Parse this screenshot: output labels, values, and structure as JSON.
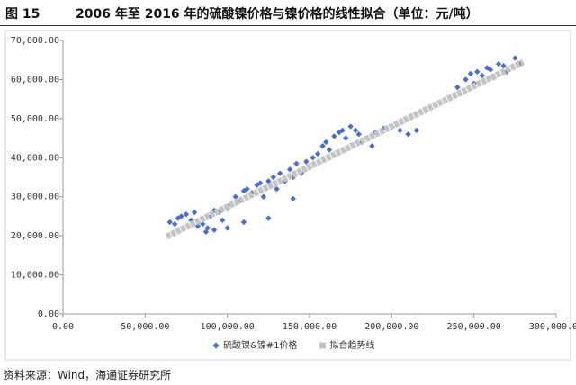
{
  "figure_label": "图 15",
  "source": "资料来源：Wind，海通证券研究所",
  "chart_data": {
    "type": "scatter",
    "title": "2006 年至 2016 年的硫酸镍价格与镍价格的线性拟合（单位：元/吨）",
    "xlim": [
      0,
      300000
    ],
    "ylim": [
      0,
      70000
    ],
    "grid": false,
    "xticks": [
      {
        "value": 0,
        "label": "0.00"
      },
      {
        "value": 50000,
        "label": "50,000.00"
      },
      {
        "value": 100000,
        "label": "100,000.00"
      },
      {
        "value": 150000,
        "label": "150,000.00"
      },
      {
        "value": 200000,
        "label": "200,000.00"
      },
      {
        "value": 250000,
        "label": "250,000.00"
      },
      {
        "value": 300000,
        "label": "300,000.00"
      }
    ],
    "yticks": [
      {
        "value": 0,
        "label": "0.00"
      },
      {
        "value": 10000,
        "label": "10,000.00"
      },
      {
        "value": 20000,
        "label": "20,000.00"
      },
      {
        "value": 30000,
        "label": "30,000.00"
      },
      {
        "value": 40000,
        "label": "40,000.00"
      },
      {
        "value": 50000,
        "label": "50,000.00"
      },
      {
        "value": 60000,
        "label": "60,000.00"
      },
      {
        "value": 70000,
        "label": "70,000.00"
      }
    ],
    "series": [
      {
        "name": "硫酸镍&镍#1价格",
        "color": "#4a6fc6",
        "marker": "diamond",
        "x": [
          65000,
          68000,
          70000,
          72000,
          75000,
          78000,
          80000,
          82000,
          85000,
          88000,
          90000,
          92000,
          95000,
          97000,
          100000,
          102000,
          105000,
          108000,
          110000,
          112000,
          115000,
          118000,
          120000,
          122000,
          125000,
          128000,
          130000,
          132000,
          135000,
          138000,
          140000,
          142000,
          145000,
          148000,
          150000,
          152000,
          155000,
          158000,
          160000,
          162000,
          165000,
          168000,
          170000,
          172000,
          175000,
          178000,
          180000,
          182000,
          185000,
          188000,
          190000,
          195000,
          200000,
          205000,
          210000,
          215000,
          125000,
          140000,
          110000,
          100000,
          92000,
          87000,
          240000,
          245000,
          250000,
          252000,
          255000,
          258000,
          260000,
          265000,
          268000,
          270000,
          275000,
          278000,
          248000,
          262000
        ],
        "values": [
          23500,
          23000,
          24500,
          25000,
          25500,
          24000,
          26000,
          22500,
          23000,
          22000,
          25000,
          26500,
          26000,
          24000,
          27000,
          28000,
          30000,
          29000,
          31500,
          32000,
          31000,
          33000,
          33500,
          30000,
          34000,
          35000,
          32000,
          36000,
          34000,
          37000,
          35000,
          38500,
          36000,
          39000,
          37500,
          40000,
          41000,
          43000,
          44000,
          42000,
          45500,
          46500,
          47000,
          45000,
          48000,
          47000,
          46000,
          44000,
          45000,
          43000,
          46500,
          47500,
          48000,
          47000,
          46000,
          47000,
          24500,
          29500,
          23500,
          22000,
          21500,
          21000,
          58000,
          60000,
          59000,
          62000,
          61000,
          63000,
          62500,
          64000,
          63500,
          62000,
          65500,
          64000,
          61500,
          60500
        ]
      },
      {
        "name": "拟合趋势线",
        "color": "#c4c4c4",
        "marker": "line",
        "x": [
          63000,
          280000
        ],
        "values": [
          19800,
          64500
        ]
      }
    ]
  }
}
